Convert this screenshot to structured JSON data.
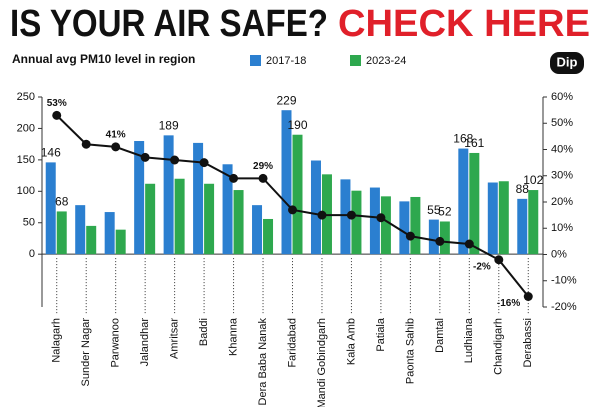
{
  "chart_data": {
    "type": "bar",
    "title": "IS YOUR AIR SAFE?",
    "title_highlight": "CHECK HERE",
    "title_highlight_color": "#e0202a",
    "subtitle": "Annual avg PM10 level in region",
    "categories": [
      "Nalagarh",
      "Sunder Nagar",
      "Parwanoo",
      "Jalandhar",
      "Amritsar",
      "Baddi",
      "Khanna",
      "Dera Baba Nanak",
      "Faridabad",
      "Mandi Gobindgarh",
      "Kala Amb",
      "Patiala",
      "Paonta Sahib",
      "Damtal",
      "Ludhiana",
      "Chandigarh",
      "Derabassi"
    ],
    "series": [
      {
        "name": "2017-18",
        "type": "bar",
        "color": "#2b7fd0",
        "values": [
          146,
          78,
          67,
          180,
          189,
          177,
          143,
          78,
          229,
          149,
          119,
          106,
          84,
          55,
          168,
          114,
          88
        ],
        "value_labels": [
          "146",
          null,
          null,
          null,
          "189",
          null,
          null,
          null,
          "229",
          null,
          null,
          null,
          null,
          "55",
          "168",
          null,
          "88"
        ]
      },
      {
        "name": "2023-24",
        "type": "bar",
        "color": "#2ea84e",
        "values": [
          68,
          45,
          39,
          112,
          120,
          112,
          102,
          56,
          190,
          127,
          101,
          92,
          91,
          52,
          161,
          116,
          102
        ],
        "value_labels": [
          "68",
          null,
          null,
          null,
          null,
          null,
          null,
          null,
          "190",
          null,
          null,
          null,
          null,
          "52",
          "161",
          null,
          "102"
        ]
      },
      {
        "name": "Dip",
        "type": "line",
        "axis": "y2",
        "color": "#111111",
        "values": [
          53,
          42,
          41,
          37,
          36,
          35,
          29,
          29,
          17,
          15,
          15,
          14,
          7,
          5,
          4,
          -2,
          -16
        ],
        "value_labels": [
          "53%",
          null,
          "41%",
          null,
          null,
          null,
          null,
          "29%",
          null,
          null,
          null,
          null,
          null,
          null,
          null,
          "-2%",
          "-16%"
        ]
      }
    ],
    "ylim": [
      -84,
      250
    ],
    "yticks": [
      0,
      50,
      100,
      150,
      200,
      250
    ],
    "y2lim": [
      -20,
      60
    ],
    "y2ticks": [
      {
        "value": 60,
        "label": "60%"
      },
      {
        "value": 50,
        "label": "50%"
      },
      {
        "value": 40,
        "label": "40%"
      },
      {
        "value": 30,
        "label": "30%"
      },
      {
        "value": 20,
        "label": "20%"
      },
      {
        "value": 10,
        "label": "10%"
      },
      {
        "value": 0,
        "label": "0%"
      },
      {
        "value": -10,
        "label": "-10%"
      },
      {
        "value": -20,
        "label": "-20%"
      }
    ]
  }
}
